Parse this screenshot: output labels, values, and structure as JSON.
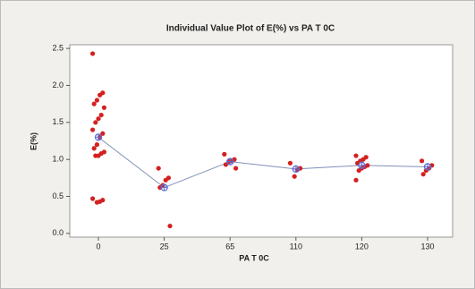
{
  "chart_data": {
    "type": "individual-value",
    "title": "Individual Value Plot of E(%) vs PA T 0C",
    "x_label": "PA T 0C",
    "y_label": "E(%)",
    "categories": [
      "0",
      "25",
      "65",
      "110",
      "120",
      "130"
    ],
    "values": [
      [
        2.43,
        1.9,
        1.87,
        1.8,
        1.75,
        1.7,
        1.6,
        1.55,
        1.5,
        1.4,
        1.35,
        1.3,
        1.2,
        1.15,
        1.1,
        1.08,
        1.05,
        1.05,
        0.47,
        0.45,
        0.43,
        0.42
      ],
      [
        0.88,
        0.75,
        0.72,
        0.65,
        0.62,
        0.1
      ],
      [
        1.07,
        1.0,
        0.98,
        0.97,
        0.93,
        0.88
      ],
      [
        0.95,
        0.88,
        0.86,
        0.77
      ],
      [
        1.05,
        1.03,
        1.0,
        0.98,
        0.95,
        0.92,
        0.9,
        0.88,
        0.85,
        0.72
      ],
      [
        0.98,
        0.92,
        0.88,
        0.85,
        0.8
      ]
    ],
    "means": [
      1.3,
      0.62,
      0.97,
      0.87,
      0.92,
      0.9
    ],
    "point_color": "#d42020",
    "mean_color": "#5a6fd6",
    "line_color": "#8090b8",
    "ylim": [
      -0.05,
      2.55
    ],
    "yticks": [
      {
        "value": 0,
        "label": "0.0"
      },
      0.5,
      {
        "value": 1,
        "label": "1.0"
      },
      1.5,
      {
        "value": 2,
        "label": "2.0"
      },
      2.5
    ]
  }
}
